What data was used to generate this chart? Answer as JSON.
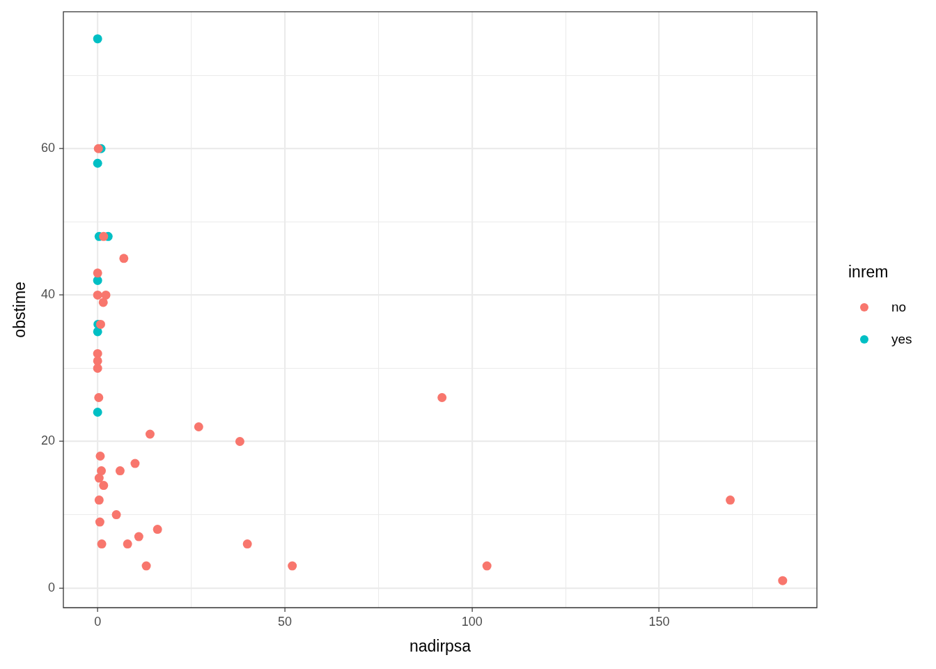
{
  "chart_data": {
    "type": "scatter",
    "xlabel": "nadirpsa",
    "ylabel": "obstime",
    "legend_title": "inrem",
    "legend": "right",
    "marker": "circle",
    "grid": true,
    "xlim": [
      -9.15,
      192.15
    ],
    "xticks": [
      0,
      {
        "value": 25,
        "label": null
      },
      50,
      {
        "value": 75,
        "label": null
      },
      100,
      {
        "value": 125,
        "label": null
      },
      150,
      {
        "value": 175,
        "label": null
      }
    ],
    "ylim": [
      -2.7,
      78.7
    ],
    "yticks": [
      0,
      {
        "value": 10,
        "label": null
      },
      20,
      {
        "value": 30,
        "label": null
      },
      40,
      {
        "value": 50,
        "label": null
      },
      60,
      {
        "value": 70,
        "label": null
      }
    ],
    "series": [
      {
        "name": "no",
        "color": "#f8766d",
        "x": [
          0.2,
          1.6,
          7,
          0,
          0,
          2.2,
          1.5,
          0.8,
          0,
          0,
          0,
          0.3,
          92,
          27,
          14,
          38,
          0.7,
          10,
          1,
          6,
          0.4,
          1.6,
          0.4,
          5,
          0.6,
          16,
          11,
          1.1,
          8,
          40,
          13,
          52,
          104,
          169,
          183
        ],
        "values": [
          60,
          48,
          45,
          43,
          40,
          40,
          39,
          36,
          32,
          31,
          30,
          26,
          26,
          22,
          21,
          20,
          18,
          17,
          16,
          16,
          15,
          14,
          12,
          10,
          9,
          8,
          7,
          6,
          6,
          6,
          3,
          3,
          3,
          12,
          1
        ]
      },
      {
        "name": "yes",
        "color": "#00bfc4",
        "x": [
          0,
          0.9,
          0,
          0.4,
          2.8,
          0,
          0.1,
          0,
          0
        ],
        "values": [
          75,
          60,
          58,
          48,
          48,
          42,
          36,
          35,
          24
        ]
      }
    ]
  }
}
